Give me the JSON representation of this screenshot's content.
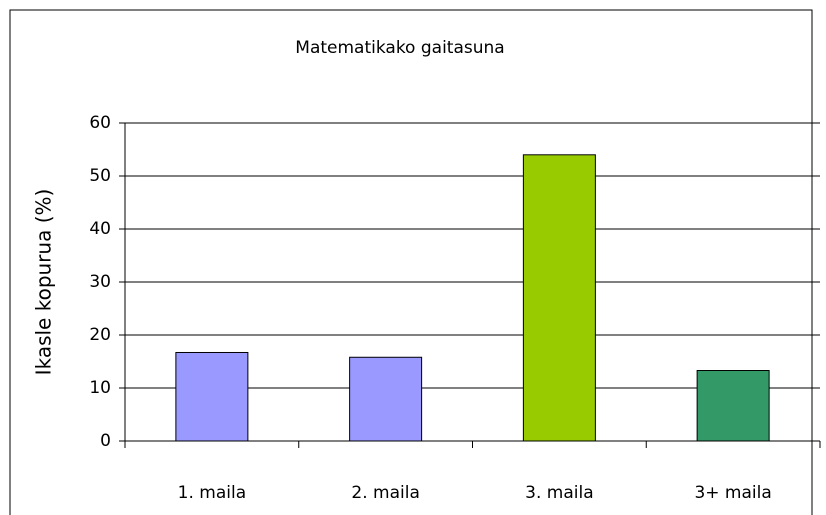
{
  "chart_data": {
    "type": "bar",
    "title": "Matematikako gaitasuna",
    "y_label": "Ikasle kopurua (%)",
    "categories": [
      "1. maila",
      "2. maila",
      "3. maila",
      "3+ maila"
    ],
    "values": [
      16.7,
      15.8,
      54,
      13.3
    ],
    "colors": [
      "#9999ff",
      "#9999ff",
      "#99cc00",
      "#339966"
    ],
    "ylim": [
      0,
      60
    ],
    "yticks": [
      0,
      10,
      20,
      30,
      40,
      50,
      60
    ],
    "grid": true
  }
}
